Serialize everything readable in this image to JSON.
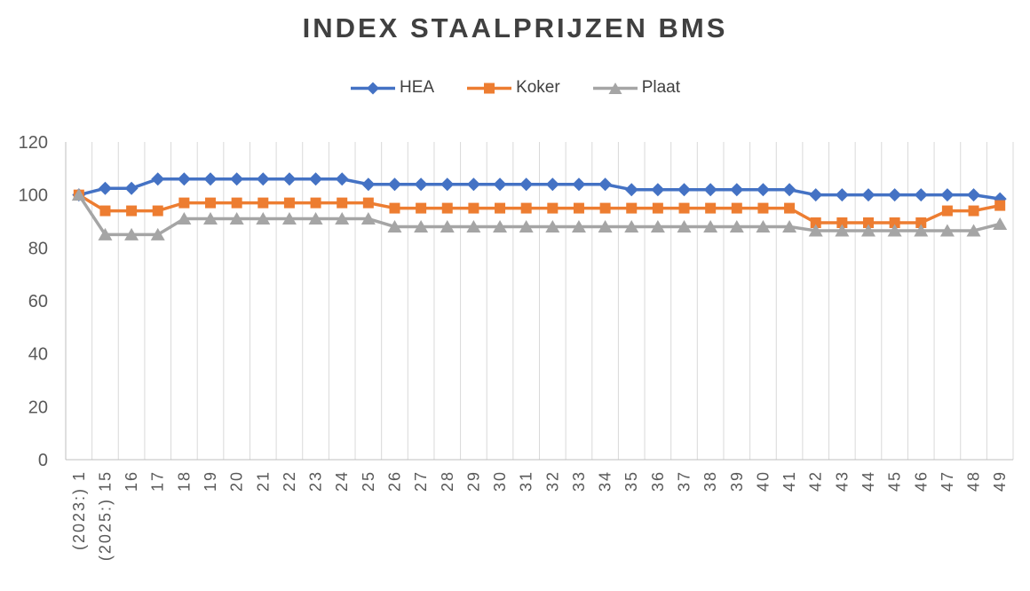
{
  "chart_data": {
    "type": "line",
    "title": "INDEX STAALPRIJZEN BMS",
    "xlabel": "",
    "ylabel": "",
    "ylim": [
      0,
      120
    ],
    "yticks": [
      0,
      20,
      40,
      60,
      80,
      100,
      120
    ],
    "grid": "vertical-only",
    "legend_position": "top-center",
    "categories": [
      "(2023:) 1",
      "(2025:) 15",
      "16",
      "17",
      "18",
      "19",
      "20",
      "21",
      "22",
      "23",
      "24",
      "25",
      "26",
      "27",
      "28",
      "29",
      "30",
      "31",
      "32",
      "33",
      "34",
      "35",
      "36",
      "37",
      "38",
      "39",
      "40",
      "41",
      "42",
      "43",
      "44",
      "45",
      "46",
      "47",
      "48",
      "49"
    ],
    "series": [
      {
        "name": "HEA",
        "color": "#4472C4",
        "marker": "diamond",
        "values": [
          100,
          102.5,
          102.5,
          106,
          106,
          106,
          106,
          106,
          106,
          106,
          106,
          104,
          104,
          104,
          104,
          104,
          104,
          104,
          104,
          104,
          104,
          102,
          102,
          102,
          102,
          102,
          102,
          102,
          100,
          100,
          100,
          100,
          100,
          100,
          100,
          98.5
        ]
      },
      {
        "name": "Koker",
        "color": "#ED7D31",
        "marker": "square",
        "values": [
          100,
          94,
          94,
          94,
          97,
          97,
          97,
          97,
          97,
          97,
          97,
          97,
          95,
          95,
          95,
          95,
          95,
          95,
          95,
          95,
          95,
          95,
          95,
          95,
          95,
          95,
          95,
          95,
          89.5,
          89.5,
          89.5,
          89.5,
          89.5,
          94,
          94,
          96
        ]
      },
      {
        "name": "Plaat",
        "color": "#A5A5A5",
        "marker": "triangle",
        "values": [
          100,
          85,
          85,
          85,
          91,
          91,
          91,
          91,
          91,
          91,
          91,
          91,
          88,
          88,
          88,
          88,
          88,
          88,
          88,
          88,
          88,
          88,
          88,
          88,
          88,
          88,
          88,
          88,
          86.5,
          86.5,
          86.5,
          86.5,
          86.5,
          86.5,
          86.5,
          89
        ]
      }
    ]
  },
  "colors": {
    "title_text": "#404040",
    "legend_text": "#404040",
    "tick_text": "#595959",
    "gridline": "#D9D9D9",
    "axis_line": "#BFBFBF",
    "background": "#FFFFFF"
  }
}
